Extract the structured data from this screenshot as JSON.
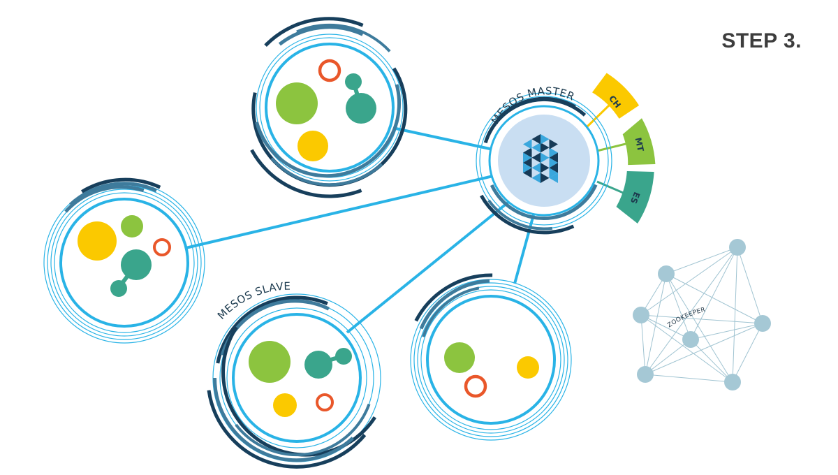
{
  "step": {
    "title": "STEP 3."
  },
  "master": {
    "label": "MESOS MASTER",
    "frameworks": [
      {
        "label": "CH",
        "color": "#fbc900"
      },
      {
        "label": "MT",
        "color": "#8cc43f"
      },
      {
        "label": "ES",
        "color": "#3aa58c"
      }
    ]
  },
  "slave": {
    "label": "MESOS SLAVE"
  },
  "zookeeper": {
    "label": "ZOOKEEPER"
  },
  "colors": {
    "link": "#29b3e6",
    "ring_dark": "#173f5c",
    "ring_mid": "#3e7b9c",
    "task_green": "#8cc43f",
    "task_teal": "#3aa58c",
    "task_yellow": "#fbc900",
    "task_ring": "#e9572a",
    "master_fill": "#c9def2",
    "logo_dark": "#163a57",
    "logo_light": "#3aa7dd",
    "zk_node": "#a5c8d5",
    "zk_line": "#9fc3d1"
  }
}
